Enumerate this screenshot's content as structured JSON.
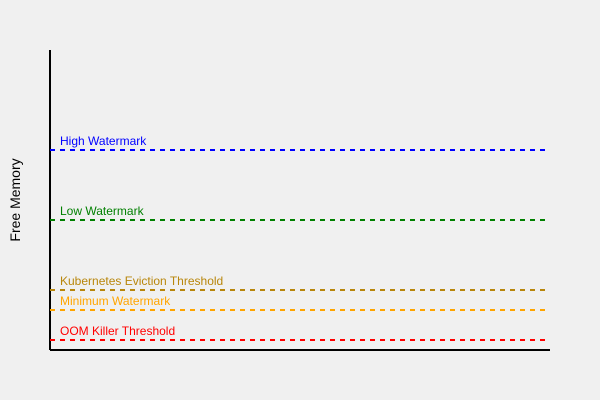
{
  "ylabel": "Free Memory",
  "thresholds": [
    {
      "label": "High Watermark",
      "color": "#0000ff"
    },
    {
      "label": "Low Watermark",
      "color": "#008000"
    },
    {
      "label": "Kubernetes Eviction Threshold",
      "color": "#b8860b"
    },
    {
      "label": "Minimum Watermark",
      "color": "#ffa500"
    },
    {
      "label": "OOM Killer Threshold",
      "color": "#ff0000"
    }
  ]
}
